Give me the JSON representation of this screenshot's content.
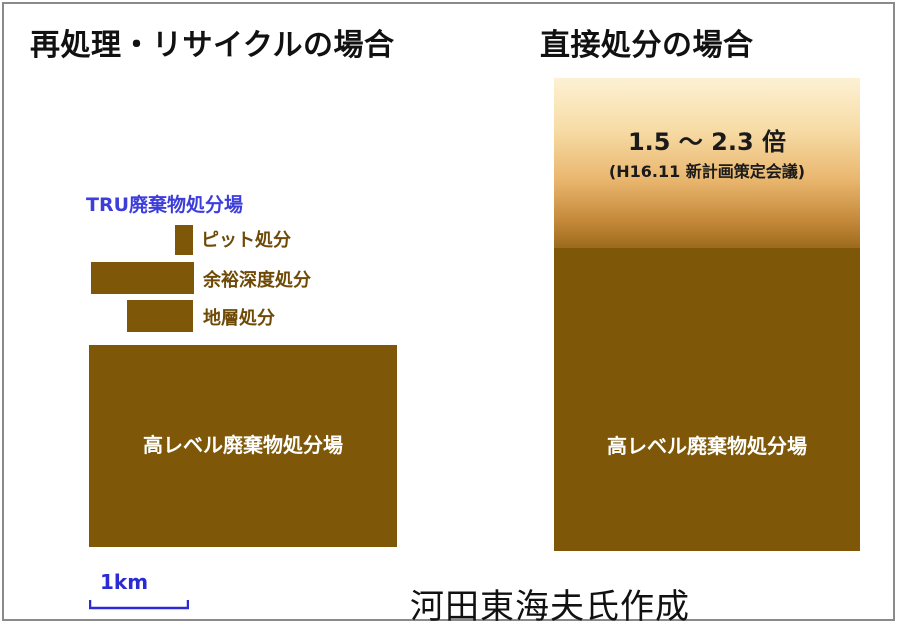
{
  "left_panel": {
    "heading": "再処理・リサイクルの場合",
    "tru_title": "TRU廃棄物処分場",
    "tru_items": [
      {
        "label": "ピット処分"
      },
      {
        "label": "余裕深度処分"
      },
      {
        "label": "地層処分"
      }
    ],
    "hlw_label": "高レベル廃棄物処分場"
  },
  "right_panel": {
    "heading": "直接処分の場合",
    "ratio": "1.5 ～ 2.3 倍",
    "ratio_source": "(H16.11 新計画策定会議)",
    "hlw_label": "高レベル廃棄物処分場"
  },
  "scale": {
    "label": "1km"
  },
  "credit": "河田東海夫氏作成",
  "colors": {
    "block": "#7e5808",
    "label_brown": "#6e4a06",
    "label_blue": "#3d3ddb",
    "scale_blue": "#2b2bd6"
  }
}
